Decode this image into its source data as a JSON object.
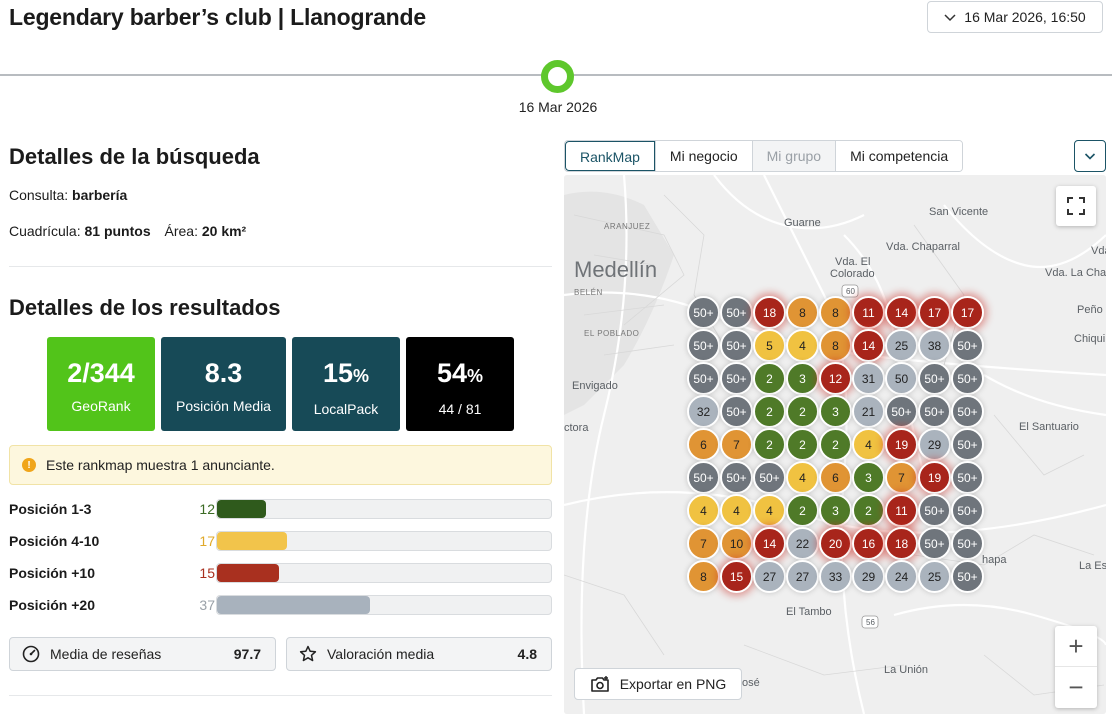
{
  "header": {
    "title": "Legendary barber’s club | Llanogrande",
    "date_selector": "16 Mar 2026, 16:50",
    "timeline_label": "16 Mar 2026"
  },
  "search": {
    "heading": "Detalles de la búsqueda",
    "query_label": "Consulta:",
    "query_value": "barbería",
    "grid_label": "Cuadrícula:",
    "grid_value": "81 puntos",
    "area_label": "Área:",
    "area_value": "20 km²"
  },
  "results": {
    "heading": "Detalles de los resultados",
    "kpis": [
      {
        "value": "2/344",
        "unit": "",
        "label": "GeoRank",
        "color": "#52c41a"
      },
      {
        "value": "8.3",
        "unit": "",
        "label": "Posición Media",
        "color": "#174a57"
      },
      {
        "value": "15",
        "unit": "%",
        "label": "LocalPack",
        "color": "#174a57"
      },
      {
        "value": "54",
        "unit": "%",
        "label": "44 / 81",
        "color": "#000000"
      }
    ],
    "notice": "Este rankmap muestra 1 anunciante.",
    "positions": [
      {
        "label": "Posición 1-3",
        "count": "12",
        "fraction": 0.148,
        "color": "#2f5a1c",
        "count_color": "#3b6b24"
      },
      {
        "label": "Posición 4-10",
        "count": "17",
        "fraction": 0.21,
        "color": "#f2c44b",
        "count_color": "#e0a92a"
      },
      {
        "label": "Posición +10",
        "count": "15",
        "fraction": 0.185,
        "color": "#a9301f",
        "count_color": "#a9301f"
      },
      {
        "label": "Posición +20",
        "count": "37",
        "fraction": 0.457,
        "color": "#a8b2bd",
        "count_color": "#9aa1a8"
      }
    ],
    "stats": [
      {
        "label": "Media de reseñas",
        "value": "97.7",
        "icon": "gauge-icon"
      },
      {
        "label": "Valoración media",
        "value": "4.8",
        "icon": "star-icon"
      }
    ]
  },
  "map": {
    "tabs": [
      {
        "label": "RankMap",
        "state": "active"
      },
      {
        "label": "Mi negocio",
        "state": "normal"
      },
      {
        "label": "Mi grupo",
        "state": "disabled"
      },
      {
        "label": "Mi competencia",
        "state": "normal"
      }
    ],
    "labels": {
      "medellin": "Medellín",
      "aranjuez": "ARANJUEZ",
      "belen": "BELÉN",
      "poblado": "EL POBLADO",
      "envigado": "Envigado",
      "guarne": "Guarne",
      "sanvicente": "San Vicente",
      "chaparral": "Vda. Chaparral",
      "elcolorado1": "Vda. El",
      "elcolorado2": "Colorado",
      "lacha": "Vda. La Cha",
      "penol": "Peño",
      "chiqui": "Chiqui",
      "santuario": "El Santuario",
      "eltambo": "El Tambo",
      "launion": "La Unión",
      "laes": "La Es",
      "vda": "Vda.",
      "ctora": "ctora",
      "hapa": "hapa",
      "ose": "osé",
      "road60": "60",
      "road56": "56"
    },
    "grid": [
      [
        "50+",
        "50+",
        "18",
        "8",
        "8",
        "11",
        "14",
        "17",
        "17"
      ],
      [
        "50+",
        "50+",
        "5",
        "4",
        "8",
        "14",
        "25",
        "38",
        "50+"
      ],
      [
        "50+",
        "50+",
        "2",
        "3",
        "12",
        "31",
        "50",
        "50+",
        "50+"
      ],
      [
        "32",
        "50+",
        "2",
        "2",
        "3",
        "21",
        "50+",
        "50+",
        "50+"
      ],
      [
        "6",
        "7",
        "2",
        "2",
        "2",
        "4",
        "19",
        "29",
        "50+"
      ],
      [
        "50+",
        "50+",
        "50+",
        "4",
        "6",
        "3",
        "7",
        "19",
        "50+"
      ],
      [
        "4",
        "4",
        "4",
        "2",
        "3",
        "2",
        "11",
        "50+",
        "50+"
      ],
      [
        "7",
        "10",
        "14",
        "22",
        "20",
        "16",
        "18",
        "50+",
        "50+"
      ],
      [
        "8",
        "15",
        "27",
        "27",
        "33",
        "29",
        "24",
        "25",
        "50+"
      ]
    ],
    "export_label": "Exportar en PNG",
    "zoom_in": "+",
    "zoom_out": "−"
  }
}
